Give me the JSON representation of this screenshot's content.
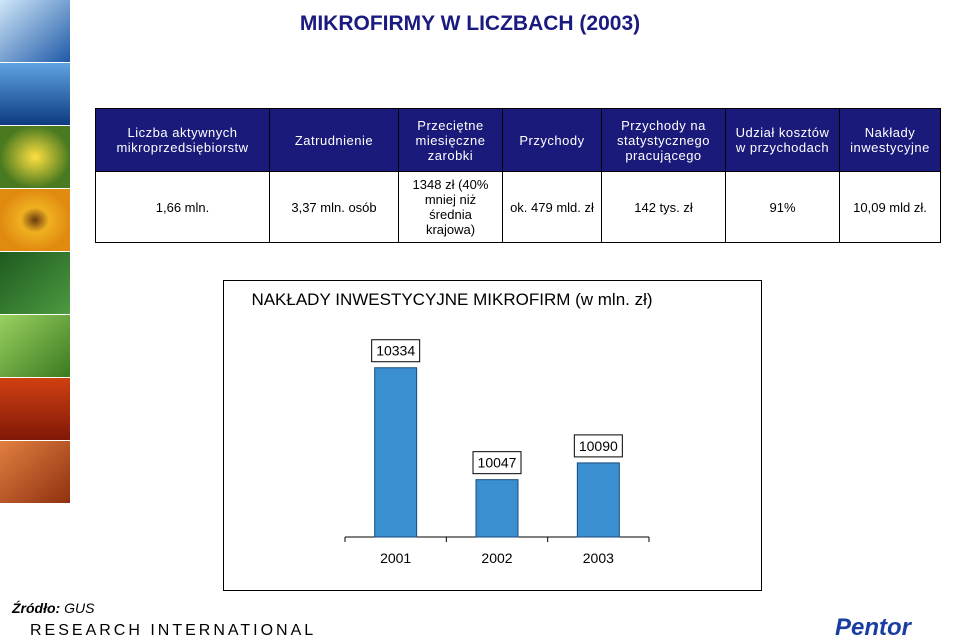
{
  "title": "MIKROFIRMY W LICZBACH (2003)",
  "table": {
    "header": [
      "Liczba aktywnych mikroprzedsiębiorstw",
      "Zatrudnienie",
      "Przeciętne miesięczne zarobki",
      "Przychody",
      "Przychody na statystycznego pracującego",
      "Udział kosztów w przychodach",
      "Nakłady inwestycyjne"
    ],
    "row": [
      "1,66 mln.",
      "3,37 mln. osób",
      "1348 zł (40% mniej niż średnia krajowa)",
      "ok. 479 mld. zł",
      "142 tys. zł",
      "91%",
      "10,09 mld zł."
    ]
  },
  "chart_data": {
    "type": "bar",
    "title": "NAKŁADY INWESTYCYJNE MIKROFIRM (w mln. zł)",
    "categories": [
      "2001",
      "2002",
      "2003"
    ],
    "values": [
      10334,
      10047,
      10090
    ],
    "color": "#3a8fd0",
    "ylim": [
      9900,
      10400
    ]
  },
  "source": {
    "label": "Źródło:",
    "value": "GUS"
  },
  "footer": {
    "company": "RESEARCH INTERNATIONAL",
    "logo": "Pentor"
  }
}
